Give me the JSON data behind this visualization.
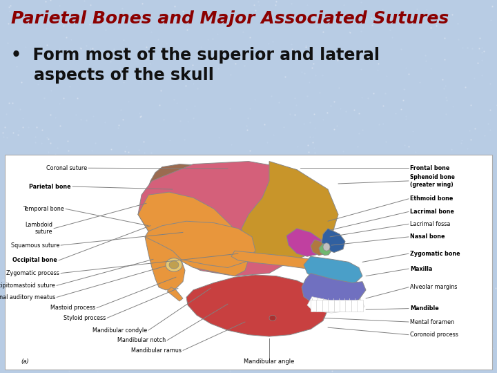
{
  "title": "Parietal Bones and Major Associated Sutures",
  "title_color": "#8B0000",
  "title_fontsize": 18,
  "bullet_text1": "•  Form most of the superior and lateral",
  "bullet_text2": "    aspects of the skull",
  "bullet_fontsize": 17,
  "bullet_color": "#111111",
  "slide_bg": "#b8cce4",
  "diagram_bg": "#ffffff",
  "bones": {
    "parietal": "#D4607A",
    "frontal": "#C8952A",
    "temporal_upper": "#E8963C",
    "occipital": "#9B6B50",
    "sphenoid": "#C8952A",
    "ethmoid": "#B07840",
    "lacrimal": "#C0C0C0",
    "nasal": "#70B870",
    "zygomatic": "#4A9FC8",
    "maxilla": "#7070C0",
    "mandible": "#C84040",
    "magenta_area": "#C040A0",
    "blue_area": "#3060A0",
    "green_stripe": "#60A860"
  }
}
